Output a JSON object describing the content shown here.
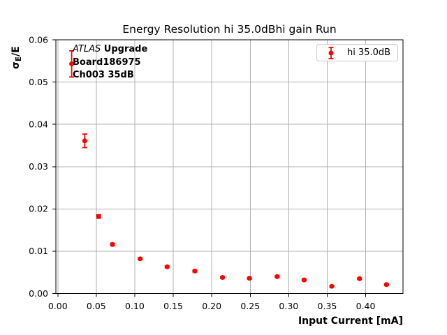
{
  "title": "Energy Resolution hi 35.0dBhi gain Run",
  "axes": {
    "xlabel": "Input Current [mA]",
    "ylabel": {
      "sigma": "σ",
      "sub": "E",
      "rest": "/E"
    }
  },
  "annotation": {
    "italic": "ATLAS",
    "bold_suffix": " Upgrade",
    "line2": "Board186975",
    "line3": "Ch003 35dB"
  },
  "legend": {
    "label": "hi 35.0dB"
  },
  "colors": {
    "series": "#ff0000",
    "grid": "#b0b0b0",
    "spine": "#000000",
    "legend_border": "#cccccc",
    "text": "#000000"
  },
  "chart_data": {
    "type": "scatter",
    "title": "Energy Resolution hi 35.0dBhi gain Run",
    "xlabel": "Input Current [mA]",
    "ylabel": "σ_E/E",
    "grid": true,
    "legend_position": "upper right",
    "legend_entries": [
      "hi 35.0dB"
    ],
    "annotation_lines": [
      "ATLAS Upgrade",
      "Board186975",
      "Ch003 35dB"
    ],
    "xlim": [
      -0.0025,
      0.4485
    ],
    "ylim": [
      0,
      0.06
    ],
    "x_ticks": [
      0.0,
      0.05,
      0.1,
      0.15,
      0.2,
      0.25,
      0.3,
      0.35,
      0.4
    ],
    "y_ticks": [
      0.0,
      0.01,
      0.02,
      0.03,
      0.04,
      0.05,
      0.06
    ],
    "series": [
      {
        "name": "hi 35.0dB",
        "color": "#ff0000",
        "marker": "circle",
        "points": [
          {
            "x": 0.018,
            "y": 0.0543,
            "yerr": 0.0031
          },
          {
            "x": 0.035,
            "y": 0.0361,
            "yerr": 0.0016
          },
          {
            "x": 0.053,
            "y": 0.0182,
            "yerr": 0.0004
          },
          {
            "x": 0.071,
            "y": 0.0116,
            "yerr": 0.0003
          },
          {
            "x": 0.107,
            "y": 0.0082,
            "yerr": 0.0002
          },
          {
            "x": 0.142,
            "y": 0.0063,
            "yerr": 0.0002
          },
          {
            "x": 0.178,
            "y": 0.0053,
            "yerr": 0.0002
          },
          {
            "x": 0.214,
            "y": 0.0038,
            "yerr": 0.0002
          },
          {
            "x": 0.249,
            "y": 0.0036,
            "yerr": 0.0002
          },
          {
            "x": 0.285,
            "y": 0.004,
            "yerr": 0.0002
          },
          {
            "x": 0.32,
            "y": 0.0032,
            "yerr": 0.0002
          },
          {
            "x": 0.356,
            "y": 0.0017,
            "yerr": 0.0002
          },
          {
            "x": 0.392,
            "y": 0.0035,
            "yerr": 0.0002
          },
          {
            "x": 0.427,
            "y": 0.0021,
            "yerr": 0.0002
          }
        ]
      }
    ]
  }
}
